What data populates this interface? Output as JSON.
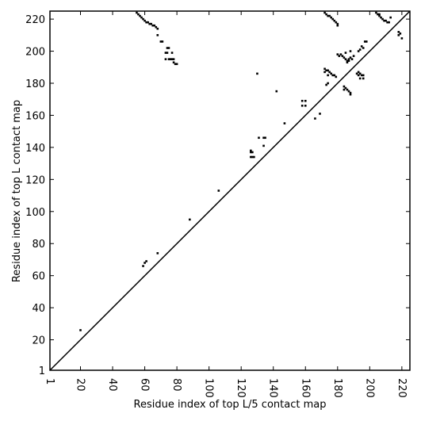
{
  "chart_data": {
    "type": "scatter",
    "xlabel": "Residue index of top L/5 contact map",
    "ylabel": "Residue index of top L contact map",
    "xlim": [
      1,
      225
    ],
    "ylim": [
      1,
      225
    ],
    "xticks": [
      1,
      20,
      40,
      60,
      80,
      100,
      120,
      140,
      160,
      180,
      200,
      220
    ],
    "yticks": [
      1,
      20,
      40,
      60,
      80,
      100,
      120,
      140,
      160,
      180,
      200,
      220
    ],
    "color": "#000000",
    "x": [
      55,
      56,
      57,
      58,
      59,
      60,
      61,
      62,
      63,
      64,
      65,
      66,
      67,
      68,
      68,
      70,
      71,
      74,
      75,
      73,
      74,
      77,
      73,
      75,
      76,
      77,
      78,
      78,
      79,
      80,
      130,
      142,
      158,
      160,
      158,
      160,
      169,
      166,
      147,
      131,
      134,
      135,
      134,
      126,
      126,
      127,
      126,
      127,
      128,
      106,
      88,
      68,
      61,
      60,
      59,
      20,
      172,
      173,
      174,
      175,
      176,
      177,
      178,
      179,
      180,
      180,
      204,
      205,
      206,
      206,
      207,
      208,
      209,
      210,
      211,
      212,
      213,
      218,
      219,
      218,
      220,
      197,
      198,
      195,
      196,
      194,
      193,
      180,
      181,
      182,
      183,
      184,
      185,
      186,
      187,
      188,
      186,
      187,
      189,
      188,
      190,
      185,
      172,
      173,
      174,
      175,
      176,
      177,
      178,
      179,
      172,
      174,
      174,
      173,
      184,
      185,
      186,
      187,
      188,
      188,
      184,
      192,
      193,
      194,
      195,
      196,
      193,
      194,
      196
    ],
    "values": [
      224,
      223,
      222,
      221,
      220,
      219,
      218,
      218,
      217,
      217,
      216,
      216,
      215,
      214,
      210,
      206,
      206,
      202,
      202,
      199,
      199,
      199,
      195,
      195,
      195,
      195,
      195,
      193,
      192,
      192,
      186,
      175,
      169,
      169,
      166,
      166,
      161,
      158,
      155,
      146,
      146,
      146,
      141,
      138,
      137,
      137,
      134,
      134,
      134,
      113,
      95,
      74,
      69,
      68,
      66,
      26,
      224,
      223,
      222,
      222,
      221,
      220,
      219,
      218,
      217,
      216,
      224,
      223,
      223,
      222,
      221,
      220,
      219,
      219,
      218,
      218,
      221,
      212,
      211,
      210,
      208,
      206,
      206,
      203,
      202,
      201,
      200,
      198,
      197,
      198,
      197,
      196,
      195,
      194,
      195,
      196,
      193,
      194,
      195,
      200,
      197,
      199,
      189,
      188,
      188,
      187,
      186,
      185,
      185,
      184,
      187,
      185,
      180,
      179,
      178,
      177,
      176,
      175,
      174,
      173,
      176,
      186,
      187,
      186,
      185,
      185,
      185,
      183,
      183
    ]
  }
}
